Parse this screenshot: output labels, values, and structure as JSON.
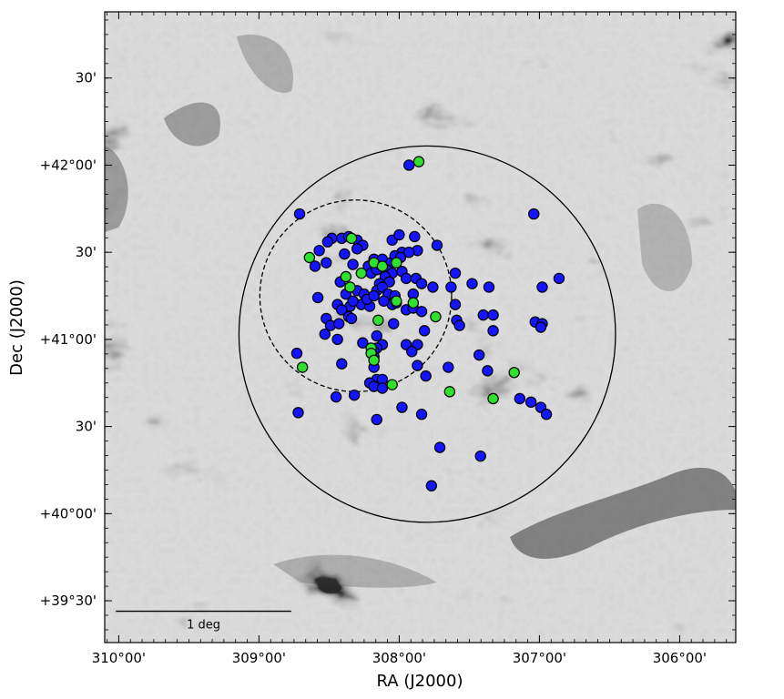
{
  "chart_data": {
    "type": "scatter",
    "title": "",
    "xlabel": "RA (J2000)",
    "ylabel": "Dec (J2000)",
    "x_units": "deg",
    "y_units": "deg",
    "xlim": [
      310.1,
      305.6
    ],
    "ylim": [
      39.26,
      42.88
    ],
    "x_reversed": true,
    "grid": false,
    "legend": "none",
    "background": "greyscale sky image, dark filaments (high) on light background",
    "x_ticks": [
      {
        "value": 310.0,
        "label": "310°00'"
      },
      {
        "value": 309.0,
        "label": "309°00'"
      },
      {
        "value": 308.0,
        "label": "308°00'"
      },
      {
        "value": 307.0,
        "label": "307°00'"
      },
      {
        "value": 306.0,
        "label": "306°00'"
      }
    ],
    "y_ticks": [
      {
        "value": 39.5,
        "label": "+39°30'"
      },
      {
        "value": 40.0,
        "label": "+40°00'"
      },
      {
        "value": 40.5,
        "label": "30'"
      },
      {
        "value": 41.0,
        "label": "+41°00'"
      },
      {
        "value": 41.5,
        "label": "30'"
      },
      {
        "value": 42.0,
        "label": "+42°00'"
      },
      {
        "value": 42.5,
        "label": "30'"
      }
    ],
    "circles": [
      {
        "ra": 307.8,
        "dec": 41.03,
        "radius_deg": 1.08,
        "style": "solid"
      },
      {
        "ra": 308.31,
        "dec": 41.25,
        "radius_deg": 0.55,
        "style": "dashed"
      }
    ],
    "scale_bar": {
      "label": "1 deg",
      "ra_start": 310.02,
      "ra_end": 308.77,
      "dec": 39.44
    },
    "colors": {
      "blue": "#1414ff",
      "green": "#2fe02f",
      "edge": "#000000",
      "circle": "#000000"
    },
    "series": [
      {
        "marker_color": "blue",
        "points": [
          [
            307.93,
            42.0
          ],
          [
            308.71,
            41.72
          ],
          [
            308.48,
            41.58
          ],
          [
            308.51,
            41.56
          ],
          [
            308.41,
            41.58
          ],
          [
            308.36,
            41.59
          ],
          [
            308.3,
            41.57
          ],
          [
            308.26,
            41.54
          ],
          [
            308.3,
            41.52
          ],
          [
            308.57,
            41.51
          ],
          [
            308.39,
            41.49
          ],
          [
            308.05,
            41.57
          ],
          [
            308.0,
            41.6
          ],
          [
            307.89,
            41.59
          ],
          [
            307.73,
            41.54
          ],
          [
            307.98,
            41.5
          ],
          [
            307.87,
            41.51
          ],
          [
            307.04,
            41.72
          ],
          [
            306.98,
            41.3
          ],
          [
            306.86,
            41.35
          ],
          [
            308.6,
            41.42
          ],
          [
            308.52,
            41.44
          ],
          [
            308.33,
            41.43
          ],
          [
            308.22,
            41.42
          ],
          [
            308.18,
            41.46
          ],
          [
            308.12,
            41.46
          ],
          [
            308.06,
            41.44
          ],
          [
            308.03,
            41.48
          ],
          [
            307.99,
            41.47
          ],
          [
            307.93,
            41.5
          ],
          [
            308.09,
            41.4
          ],
          [
            308.05,
            41.38
          ],
          [
            307.98,
            41.39
          ],
          [
            307.95,
            41.35
          ],
          [
            307.88,
            41.35
          ],
          [
            308.2,
            41.38
          ],
          [
            308.16,
            41.4
          ],
          [
            308.1,
            41.36
          ],
          [
            308.07,
            41.33
          ],
          [
            308.14,
            41.32
          ],
          [
            307.84,
            41.32
          ],
          [
            307.76,
            41.3
          ],
          [
            307.6,
            41.38
          ],
          [
            307.48,
            41.32
          ],
          [
            307.36,
            41.3
          ],
          [
            307.63,
            41.3
          ],
          [
            307.9,
            41.26
          ],
          [
            308.42,
            41.33
          ],
          [
            308.58,
            41.24
          ],
          [
            308.3,
            41.28
          ],
          [
            308.25,
            41.26
          ],
          [
            308.38,
            41.26
          ],
          [
            308.44,
            41.2
          ],
          [
            308.35,
            41.19
          ],
          [
            308.27,
            41.2
          ],
          [
            308.21,
            41.19
          ],
          [
            308.23,
            41.23
          ],
          [
            308.16,
            41.28
          ],
          [
            308.12,
            41.3
          ],
          [
            308.18,
            41.25
          ],
          [
            308.08,
            41.26
          ],
          [
            308.03,
            41.25
          ],
          [
            308.05,
            41.2
          ],
          [
            308.11,
            41.22
          ],
          [
            308.33,
            41.22
          ],
          [
            308.41,
            41.17
          ],
          [
            308.36,
            41.13
          ],
          [
            308.52,
            41.12
          ],
          [
            308.49,
            41.08
          ],
          [
            308.43,
            41.09
          ],
          [
            308.34,
            41.12
          ],
          [
            308.02,
            41.21
          ],
          [
            307.95,
            41.17
          ],
          [
            307.9,
            41.18
          ],
          [
            307.84,
            41.16
          ],
          [
            307.6,
            41.2
          ],
          [
            307.4,
            41.14
          ],
          [
            307.33,
            41.14
          ],
          [
            307.59,
            41.11
          ],
          [
            307.57,
            41.08
          ],
          [
            307.33,
            41.05
          ],
          [
            307.03,
            41.1
          ],
          [
            306.98,
            41.09
          ],
          [
            306.99,
            41.07
          ],
          [
            308.53,
            41.03
          ],
          [
            308.44,
            41.0
          ],
          [
            308.16,
            41.02
          ],
          [
            308.04,
            41.09
          ],
          [
            307.82,
            41.05
          ],
          [
            308.73,
            40.92
          ],
          [
            308.41,
            40.86
          ],
          [
            308.26,
            40.98
          ],
          [
            308.12,
            40.97
          ],
          [
            308.16,
            40.95
          ],
          [
            308.18,
            40.93
          ],
          [
            308.18,
            40.9
          ],
          [
            307.87,
            40.97
          ],
          [
            307.95,
            40.97
          ],
          [
            307.91,
            40.93
          ],
          [
            307.87,
            40.85
          ],
          [
            307.81,
            40.79
          ],
          [
            307.65,
            40.84
          ],
          [
            307.43,
            40.91
          ],
          [
            307.37,
            40.82
          ],
          [
            308.18,
            40.84
          ],
          [
            308.16,
            40.77
          ],
          [
            308.12,
            40.77
          ],
          [
            308.21,
            40.75
          ],
          [
            308.18,
            40.73
          ],
          [
            308.12,
            40.72
          ],
          [
            308.72,
            40.58
          ],
          [
            308.45,
            40.67
          ],
          [
            308.32,
            40.68
          ],
          [
            307.98,
            40.61
          ],
          [
            307.84,
            40.57
          ],
          [
            308.16,
            40.54
          ],
          [
            307.14,
            40.66
          ],
          [
            307.06,
            40.64
          ],
          [
            306.99,
            40.61
          ],
          [
            306.95,
            40.57
          ],
          [
            307.71,
            40.38
          ],
          [
            307.42,
            40.33
          ],
          [
            307.77,
            40.16
          ]
        ]
      },
      {
        "marker_color": "green",
        "points": [
          [
            307.86,
            42.02
          ],
          [
            308.34,
            41.58
          ],
          [
            308.64,
            41.47
          ],
          [
            308.18,
            41.44
          ],
          [
            308.12,
            41.42
          ],
          [
            308.02,
            41.44
          ],
          [
            308.38,
            41.36
          ],
          [
            308.27,
            41.38
          ],
          [
            308.35,
            41.3
          ],
          [
            308.02,
            41.22
          ],
          [
            307.9,
            41.21
          ],
          [
            307.74,
            41.13
          ],
          [
            308.15,
            41.11
          ],
          [
            308.2,
            40.95
          ],
          [
            308.2,
            40.92
          ],
          [
            308.18,
            40.88
          ],
          [
            308.69,
            40.84
          ],
          [
            307.18,
            40.81
          ],
          [
            308.05,
            40.74
          ],
          [
            307.64,
            40.7
          ],
          [
            307.33,
            40.66
          ]
        ]
      }
    ]
  }
}
